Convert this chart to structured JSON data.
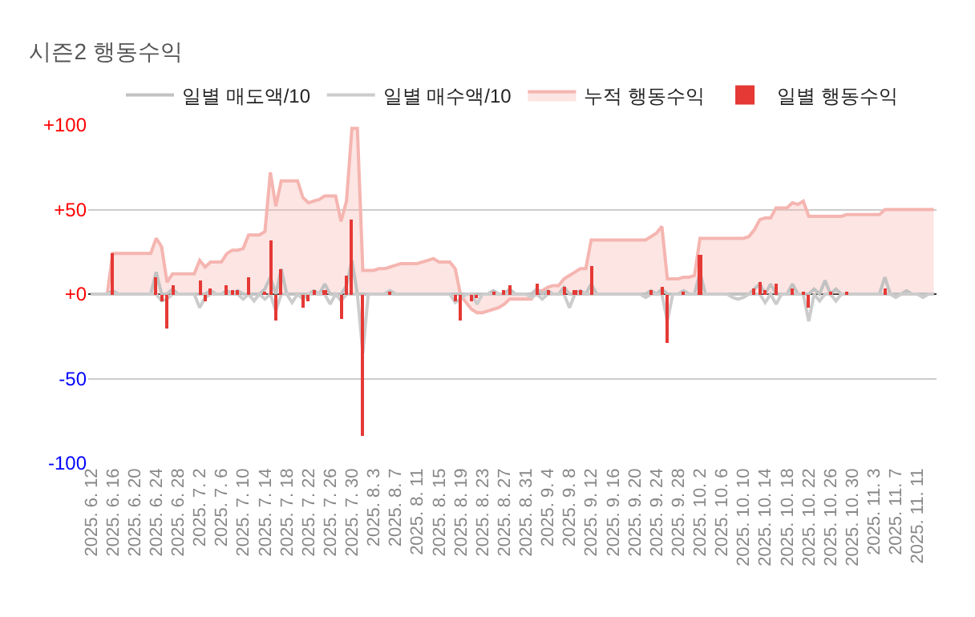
{
  "chart_data": {
    "type": "line",
    "title": "시즌2 행동수익",
    "categories": [
      "2025. 6. 12",
      null,
      null,
      null,
      "2025. 6. 16",
      null,
      null,
      null,
      "2025. 6. 20",
      null,
      null,
      null,
      "2025. 6. 24",
      null,
      null,
      null,
      "2025. 6. 28",
      null,
      null,
      null,
      "2025. 7. 2",
      null,
      null,
      null,
      "2025. 7. 6",
      null,
      null,
      null,
      "2025. 7. 10",
      null,
      null,
      null,
      "2025. 7. 14",
      null,
      null,
      null,
      "2025. 7. 18",
      null,
      null,
      null,
      "2025. 7. 22",
      null,
      null,
      null,
      "2025. 7. 26",
      null,
      null,
      null,
      "2025. 7. 30",
      null,
      null,
      null,
      "2025. 8. 3",
      null,
      null,
      null,
      "2025. 8. 7",
      null,
      null,
      null,
      "2025. 8. 11",
      null,
      null,
      null,
      "2025. 8. 15",
      null,
      null,
      null,
      "2025. 8. 19",
      null,
      null,
      null,
      "2025. 8. 23",
      null,
      null,
      null,
      "2025. 8. 27",
      null,
      null,
      null,
      "2025. 8. 31",
      null,
      null,
      null,
      "2025. 9. 4",
      null,
      null,
      null,
      "2025. 9. 8",
      null,
      null,
      null,
      "2025. 9. 12",
      null,
      null,
      null,
      "2025. 9. 16",
      null,
      null,
      null,
      "2025. 9. 20",
      null,
      null,
      null,
      "2025. 9. 24",
      null,
      null,
      null,
      "2025. 9. 28",
      null,
      null,
      null,
      "2025. 10. 2",
      null,
      null,
      null,
      "2025. 10. 6",
      null,
      null,
      null,
      "2025. 10. 10",
      null,
      null,
      null,
      "2025. 10. 14",
      null,
      null,
      null,
      "2025. 10. 18",
      null,
      null,
      null,
      "2025. 10. 22",
      null,
      null,
      null,
      "2025. 10. 26",
      null,
      null,
      null,
      "2025. 10. 30",
      null,
      null,
      null,
      "2025. 11. 3",
      null,
      null,
      null,
      "2025. 11. 7",
      null,
      null,
      null,
      "2025. 11. 11",
      null,
      null,
      null
    ],
    "series": [
      {
        "name": "일별 매도액/10",
        "color": "#c2c2c2",
        "values": [
          0,
          0,
          0,
          0,
          2,
          0,
          0,
          0,
          0,
          0,
          0,
          0,
          13,
          0,
          0,
          3,
          0,
          0,
          0,
          0,
          0,
          0,
          2,
          0,
          0,
          2,
          0,
          2,
          0,
          0,
          0,
          0,
          3,
          10,
          0,
          15,
          0,
          0,
          0,
          0,
          0,
          2,
          0,
          6,
          0,
          0,
          0,
          5,
          20,
          0,
          0,
          0,
          0,
          0,
          0,
          2,
          0,
          0,
          0,
          0,
          0,
          0,
          0,
          0,
          0,
          0,
          0,
          0,
          0,
          0,
          0,
          0,
          0,
          0,
          2,
          0,
          0,
          3,
          0,
          0,
          0,
          0,
          3,
          0,
          2,
          0,
          0,
          4,
          0,
          0,
          2,
          0,
          6,
          0,
          0,
          0,
          0,
          0,
          0,
          0,
          0,
          0,
          0,
          2,
          0,
          3,
          0,
          0,
          0,
          2,
          0,
          0,
          13,
          0,
          0,
          0,
          0,
          0,
          0,
          0,
          0,
          0,
          3,
          6,
          0,
          6,
          0,
          0,
          0,
          6,
          0,
          0,
          0,
          3,
          0,
          8,
          0,
          3,
          0,
          0,
          0,
          0,
          0,
          0,
          0,
          0,
          10,
          0,
          0,
          0,
          2,
          0,
          0,
          0,
          0,
          0
        ]
      },
      {
        "name": "일별 매수액/10",
        "color": "#cccccc",
        "values": [
          0,
          0,
          0,
          0,
          0,
          0,
          0,
          0,
          0,
          0,
          0,
          0,
          0,
          -4,
          -3,
          0,
          0,
          0,
          0,
          0,
          -8,
          -2,
          0,
          0,
          0,
          0,
          0,
          0,
          -3,
          0,
          -4,
          0,
          -3,
          0,
          -10,
          0,
          0,
          -5,
          0,
          -3,
          0,
          0,
          0,
          0,
          -6,
          0,
          -4,
          0,
          0,
          0,
          -35,
          0,
          0,
          0,
          0,
          0,
          0,
          0,
          0,
          0,
          0,
          0,
          0,
          0,
          0,
          0,
          0,
          -5,
          -3,
          0,
          0,
          -6,
          0,
          0,
          0,
          0,
          0,
          0,
          0,
          0,
          0,
          -2,
          0,
          -3,
          0,
          0,
          0,
          0,
          -8,
          0,
          0,
          0,
          0,
          0,
          0,
          0,
          0,
          0,
          0,
          0,
          0,
          0,
          -2,
          0,
          0,
          0,
          -16,
          0,
          0,
          0,
          0,
          0,
          0,
          0,
          0,
          0,
          0,
          0,
          -2,
          -3,
          -2,
          0,
          0,
          0,
          -5,
          0,
          -6,
          0,
          0,
          0,
          0,
          0,
          -16,
          0,
          -4,
          0,
          0,
          -4,
          0,
          0,
          0,
          0,
          0,
          0,
          0,
          0,
          0,
          0,
          -2,
          0,
          0,
          0,
          0,
          -2,
          0,
          0
        ]
      },
      {
        "name": "누적 행동수익",
        "type": "area",
        "color": "#f5b5b0",
        "values": [
          0,
          0,
          0,
          0,
          24,
          24,
          24,
          24,
          24,
          24,
          24,
          24,
          33,
          28,
          7,
          12,
          12,
          12,
          12,
          12,
          20,
          16,
          19,
          19,
          19,
          24,
          26,
          26,
          27,
          35,
          35,
          35,
          37,
          72,
          52,
          67,
          67,
          67,
          67,
          57,
          54,
          55,
          56,
          58,
          58,
          58,
          43,
          55,
          98,
          98,
          14,
          14,
          14,
          15,
          15,
          16,
          17,
          18,
          18,
          18,
          18,
          19,
          20,
          21,
          19,
          19,
          19,
          15,
          -1,
          -5,
          -9,
          -11,
          -11,
          -10,
          -9,
          -8,
          -6,
          -3,
          -3,
          -3,
          -3,
          -3,
          2,
          2,
          4,
          5,
          5,
          9,
          11,
          13,
          15,
          15,
          32,
          32,
          32,
          32,
          32,
          32,
          32,
          32,
          32,
          32,
          32,
          34,
          36,
          40,
          9,
          9,
          9,
          10,
          10,
          11,
          33,
          33,
          33,
          33,
          33,
          33,
          33,
          33,
          33,
          34,
          38,
          44,
          45,
          45,
          51,
          51,
          51,
          54,
          53,
          55,
          46,
          46,
          46,
          46,
          46,
          46,
          46,
          47,
          47,
          47,
          47,
          47,
          47,
          47,
          50,
          50,
          50,
          50,
          50,
          50,
          50,
          50,
          50,
          50
        ]
      },
      {
        "name": "일별 행동수익",
        "type": "bar",
        "color": "#e53935",
        "values": [
          null,
          null,
          null,
          null,
          24,
          null,
          null,
          null,
          null,
          null,
          null,
          null,
          10,
          -4,
          -20,
          5,
          null,
          null,
          null,
          null,
          8,
          -4,
          3,
          null,
          null,
          5,
          2,
          2,
          null,
          10,
          null,
          null,
          1,
          32,
          -16,
          15,
          null,
          null,
          null,
          -8,
          -4,
          2,
          null,
          2,
          null,
          null,
          -15,
          11,
          44,
          null,
          -84,
          null,
          null,
          null,
          null,
          1,
          null,
          null,
          null,
          null,
          null,
          null,
          null,
          null,
          null,
          null,
          null,
          -4,
          -16,
          null,
          -4,
          -2,
          null,
          null,
          1,
          null,
          2,
          5,
          null,
          null,
          null,
          null,
          6,
          null,
          2,
          null,
          null,
          4,
          null,
          2,
          2,
          null,
          17,
          null,
          null,
          null,
          null,
          null,
          null,
          null,
          null,
          null,
          null,
          2,
          null,
          4,
          -29,
          null,
          null,
          1,
          null,
          null,
          23,
          null,
          null,
          null,
          null,
          null,
          null,
          null,
          null,
          null,
          3,
          7,
          2,
          null,
          6,
          null,
          null,
          3,
          null,
          1,
          -8,
          null,
          null,
          null,
          1,
          null,
          null,
          1,
          null,
          null,
          null,
          null,
          null,
          null,
          3,
          null,
          null,
          null,
          null,
          null,
          null,
          null,
          null,
          null
        ]
      }
    ],
    "ylim": [
      -100,
      100
    ],
    "yticks": [
      {
        "value": -100,
        "label": "-100"
      },
      {
        "value": -50,
        "label": "-50"
      },
      {
        "value": 0,
        "label": "+0"
      },
      {
        "value": 50,
        "label": "+50"
      },
      {
        "value": 100,
        "label": "+100"
      }
    ],
    "grid": "y",
    "legend": "top",
    "marker": "none"
  }
}
